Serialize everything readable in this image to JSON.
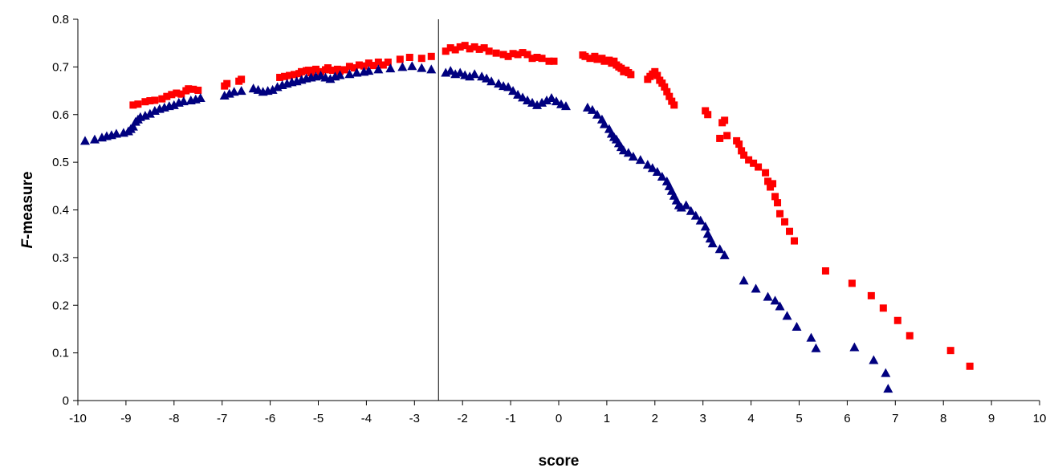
{
  "chart_data": {
    "type": "scatter",
    "title": "",
    "xlabel": "score",
    "ylabel": "F-measure",
    "ylabel_parts": {
      "italic": "F",
      "rest": "-measure"
    },
    "xlim": [
      -10,
      10
    ],
    "ylim": [
      0,
      0.8
    ],
    "x_ticks": [
      -10,
      -9,
      -8,
      -7,
      -6,
      -5,
      -4,
      -3,
      -2,
      -1,
      0,
      1,
      2,
      3,
      4,
      5,
      6,
      7,
      8,
      9,
      10
    ],
    "y_ticks": [
      0,
      0.1,
      0.2,
      0.3,
      0.4,
      0.5,
      0.6,
      0.7,
      0.8
    ],
    "y_tick_labels": [
      "0",
      "0.1",
      "0.2",
      "0.3",
      "0.4",
      "0.5",
      "0.6",
      "0.7",
      "0.8"
    ],
    "grid": false,
    "legend": "none",
    "reference_line_x": -2.5,
    "series": [
      {
        "marker": "square",
        "color": "#ff0000",
        "points": [
          [
            -8.85,
            0.62
          ],
          [
            -8.75,
            0.622
          ],
          [
            -8.6,
            0.627
          ],
          [
            -8.5,
            0.629
          ],
          [
            -8.4,
            0.63
          ],
          [
            -8.25,
            0.633
          ],
          [
            -8.15,
            0.638
          ],
          [
            -8.05,
            0.642
          ],
          [
            -7.95,
            0.645
          ],
          [
            -7.85,
            0.643
          ],
          [
            -7.75,
            0.65
          ],
          [
            -7.7,
            0.654
          ],
          [
            -7.6,
            0.653
          ],
          [
            -7.5,
            0.651
          ],
          [
            -6.95,
            0.66
          ],
          [
            -6.9,
            0.665
          ],
          [
            -6.65,
            0.67
          ],
          [
            -6.6,
            0.674
          ],
          [
            -5.8,
            0.678
          ],
          [
            -5.7,
            0.68
          ],
          [
            -5.6,
            0.682
          ],
          [
            -5.5,
            0.684
          ],
          [
            -5.4,
            0.686
          ],
          [
            -5.35,
            0.69
          ],
          [
            -5.25,
            0.692
          ],
          [
            -5.2,
            0.693
          ],
          [
            -5.15,
            0.688
          ],
          [
            -5.05,
            0.695
          ],
          [
            -4.95,
            0.69
          ],
          [
            -4.85,
            0.694
          ],
          [
            -4.8,
            0.698
          ],
          [
            -4.7,
            0.693
          ],
          [
            -4.6,
            0.695
          ],
          [
            -4.55,
            0.691
          ],
          [
            -4.45,
            0.694
          ],
          [
            -4.35,
            0.701
          ],
          [
            -4.25,
            0.698
          ],
          [
            -4.15,
            0.704
          ],
          [
            -4.05,
            0.702
          ],
          [
            -3.95,
            0.708
          ],
          [
            -3.85,
            0.703
          ],
          [
            -3.75,
            0.71
          ],
          [
            -3.65,
            0.704
          ],
          [
            -3.55,
            0.71
          ],
          [
            -3.3,
            0.716
          ],
          [
            -3.1,
            0.72
          ],
          [
            -2.85,
            0.718
          ],
          [
            -2.65,
            0.722
          ],
          [
            -2.35,
            0.733
          ],
          [
            -2.25,
            0.74
          ],
          [
            -2.15,
            0.736
          ],
          [
            -2.05,
            0.742
          ],
          [
            -1.95,
            0.745
          ],
          [
            -1.85,
            0.738
          ],
          [
            -1.75,
            0.742
          ],
          [
            -1.65,
            0.737
          ],
          [
            -1.55,
            0.74
          ],
          [
            -1.45,
            0.733
          ],
          [
            -1.3,
            0.729
          ],
          [
            -1.15,
            0.726
          ],
          [
            -1.05,
            0.722
          ],
          [
            -0.95,
            0.728
          ],
          [
            -0.85,
            0.726
          ],
          [
            -0.75,
            0.73
          ],
          [
            -0.65,
            0.726
          ],
          [
            -0.55,
            0.718
          ],
          [
            -0.45,
            0.72
          ],
          [
            -0.35,
            0.718
          ],
          [
            -0.2,
            0.712
          ],
          [
            -0.1,
            0.712
          ],
          [
            0.5,
            0.725
          ],
          [
            0.55,
            0.722
          ],
          [
            0.65,
            0.718
          ],
          [
            0.75,
            0.722
          ],
          [
            0.8,
            0.716
          ],
          [
            0.9,
            0.718
          ],
          [
            0.95,
            0.712
          ],
          [
            1.05,
            0.714
          ],
          [
            1.1,
            0.708
          ],
          [
            1.15,
            0.712
          ],
          [
            1.2,
            0.704
          ],
          [
            1.25,
            0.7
          ],
          [
            1.3,
            0.697
          ],
          [
            1.35,
            0.69
          ],
          [
            1.4,
            0.693
          ],
          [
            1.45,
            0.688
          ],
          [
            1.5,
            0.684
          ],
          [
            1.85,
            0.674
          ],
          [
            1.9,
            0.68
          ],
          [
            1.95,
            0.685
          ],
          [
            2.0,
            0.69
          ],
          [
            2.05,
            0.682
          ],
          [
            2.1,
            0.672
          ],
          [
            2.15,
            0.666
          ],
          [
            2.2,
            0.658
          ],
          [
            2.25,
            0.648
          ],
          [
            2.3,
            0.638
          ],
          [
            2.35,
            0.628
          ],
          [
            2.4,
            0.62
          ],
          [
            3.05,
            0.608
          ],
          [
            3.1,
            0.6
          ],
          [
            3.35,
            0.55
          ],
          [
            3.4,
            0.583
          ],
          [
            3.45,
            0.588
          ],
          [
            3.5,
            0.556
          ],
          [
            3.7,
            0.545
          ],
          [
            3.75,
            0.538
          ],
          [
            3.8,
            0.524
          ],
          [
            3.85,
            0.515
          ],
          [
            3.95,
            0.505
          ],
          [
            4.05,
            0.498
          ],
          [
            4.15,
            0.49
          ],
          [
            4.3,
            0.478
          ],
          [
            4.35,
            0.46
          ],
          [
            4.4,
            0.448
          ],
          [
            4.45,
            0.455
          ],
          [
            4.5,
            0.428
          ],
          [
            4.55,
            0.415
          ],
          [
            4.6,
            0.392
          ],
          [
            4.7,
            0.375
          ],
          [
            4.8,
            0.355
          ],
          [
            4.9,
            0.335
          ],
          [
            5.55,
            0.272
          ],
          [
            6.1,
            0.246
          ],
          [
            6.5,
            0.22
          ],
          [
            6.75,
            0.194
          ],
          [
            7.05,
            0.168
          ],
          [
            7.3,
            0.136
          ],
          [
            8.15,
            0.105
          ],
          [
            8.55,
            0.072
          ]
        ]
      },
      {
        "marker": "triangle",
        "color": "#00007f",
        "points": [
          [
            -9.85,
            0.545
          ],
          [
            -9.65,
            0.548
          ],
          [
            -9.5,
            0.552
          ],
          [
            -9.4,
            0.555
          ],
          [
            -9.3,
            0.557
          ],
          [
            -9.2,
            0.56
          ],
          [
            -9.05,
            0.562
          ],
          [
            -8.95,
            0.565
          ],
          [
            -8.9,
            0.57
          ],
          [
            -8.85,
            0.575
          ],
          [
            -8.8,
            0.585
          ],
          [
            -8.75,
            0.59
          ],
          [
            -8.7,
            0.595
          ],
          [
            -8.6,
            0.598
          ],
          [
            -8.5,
            0.602
          ],
          [
            -8.4,
            0.608
          ],
          [
            -8.3,
            0.612
          ],
          [
            -8.2,
            0.615
          ],
          [
            -8.1,
            0.618
          ],
          [
            -8.0,
            0.62
          ],
          [
            -7.9,
            0.625
          ],
          [
            -7.8,
            0.628
          ],
          [
            -7.65,
            0.63
          ],
          [
            -7.55,
            0.632
          ],
          [
            -7.45,
            0.635
          ],
          [
            -6.95,
            0.64
          ],
          [
            -6.85,
            0.644
          ],
          [
            -6.75,
            0.648
          ],
          [
            -6.6,
            0.65
          ],
          [
            -6.35,
            0.655
          ],
          [
            -6.25,
            0.652
          ],
          [
            -6.15,
            0.648
          ],
          [
            -6.05,
            0.65
          ],
          [
            -5.95,
            0.652
          ],
          [
            -5.85,
            0.658
          ],
          [
            -5.75,
            0.662
          ],
          [
            -5.65,
            0.665
          ],
          [
            -5.55,
            0.668
          ],
          [
            -5.45,
            0.67
          ],
          [
            -5.35,
            0.673
          ],
          [
            -5.25,
            0.676
          ],
          [
            -5.15,
            0.678
          ],
          [
            -5.05,
            0.68
          ],
          [
            -4.95,
            0.682
          ],
          [
            -4.85,
            0.678
          ],
          [
            -4.75,
            0.675
          ],
          [
            -4.65,
            0.68
          ],
          [
            -4.55,
            0.683
          ],
          [
            -4.35,
            0.685
          ],
          [
            -4.2,
            0.688
          ],
          [
            -4.05,
            0.69
          ],
          [
            -3.95,
            0.692
          ],
          [
            -3.75,
            0.695
          ],
          [
            -3.5,
            0.697
          ],
          [
            -3.25,
            0.7
          ],
          [
            -3.05,
            0.702
          ],
          [
            -2.85,
            0.698
          ],
          [
            -2.65,
            0.695
          ],
          [
            -2.35,
            0.688
          ],
          [
            -2.25,
            0.692
          ],
          [
            -2.15,
            0.685
          ],
          [
            -2.05,
            0.688
          ],
          [
            -1.95,
            0.683
          ],
          [
            -1.85,
            0.68
          ],
          [
            -1.75,
            0.685
          ],
          [
            -1.6,
            0.68
          ],
          [
            -1.5,
            0.676
          ],
          [
            -1.4,
            0.67
          ],
          [
            -1.25,
            0.665
          ],
          [
            -1.15,
            0.66
          ],
          [
            -1.05,
            0.658
          ],
          [
            -0.95,
            0.65
          ],
          [
            -0.85,
            0.642
          ],
          [
            -0.75,
            0.636
          ],
          [
            -0.65,
            0.63
          ],
          [
            -0.55,
            0.625
          ],
          [
            -0.45,
            0.62
          ],
          [
            -0.35,
            0.625
          ],
          [
            -0.25,
            0.63
          ],
          [
            -0.15,
            0.635
          ],
          [
            -0.05,
            0.628
          ],
          [
            0.05,
            0.622
          ],
          [
            0.15,
            0.618
          ],
          [
            0.6,
            0.615
          ],
          [
            0.7,
            0.61
          ],
          [
            0.8,
            0.6
          ],
          [
            0.9,
            0.59
          ],
          [
            0.95,
            0.58
          ],
          [
            1.05,
            0.57
          ],
          [
            1.1,
            0.56
          ],
          [
            1.15,
            0.553
          ],
          [
            1.2,
            0.548
          ],
          [
            1.25,
            0.54
          ],
          [
            1.3,
            0.532
          ],
          [
            1.35,
            0.525
          ],
          [
            1.45,
            0.52
          ],
          [
            1.55,
            0.512
          ],
          [
            1.7,
            0.505
          ],
          [
            1.85,
            0.495
          ],
          [
            1.95,
            0.488
          ],
          [
            2.05,
            0.48
          ],
          [
            2.15,
            0.47
          ],
          [
            2.25,
            0.46
          ],
          [
            2.3,
            0.45
          ],
          [
            2.35,
            0.44
          ],
          [
            2.4,
            0.43
          ],
          [
            2.45,
            0.42
          ],
          [
            2.5,
            0.41
          ],
          [
            2.55,
            0.405
          ],
          [
            2.65,
            0.41
          ],
          [
            2.75,
            0.398
          ],
          [
            2.85,
            0.388
          ],
          [
            2.95,
            0.378
          ],
          [
            3.05,
            0.365
          ],
          [
            3.1,
            0.35
          ],
          [
            3.15,
            0.34
          ],
          [
            3.2,
            0.33
          ],
          [
            3.35,
            0.318
          ],
          [
            3.45,
            0.305
          ],
          [
            3.85,
            0.252
          ],
          [
            4.1,
            0.235
          ],
          [
            4.35,
            0.218
          ],
          [
            4.5,
            0.21
          ],
          [
            4.6,
            0.198
          ],
          [
            4.75,
            0.178
          ],
          [
            4.95,
            0.155
          ],
          [
            5.25,
            0.132
          ],
          [
            5.35,
            0.11
          ],
          [
            6.15,
            0.112
          ],
          [
            6.55,
            0.085
          ],
          [
            6.8,
            0.058
          ],
          [
            6.85,
            0.025
          ]
        ]
      }
    ]
  }
}
